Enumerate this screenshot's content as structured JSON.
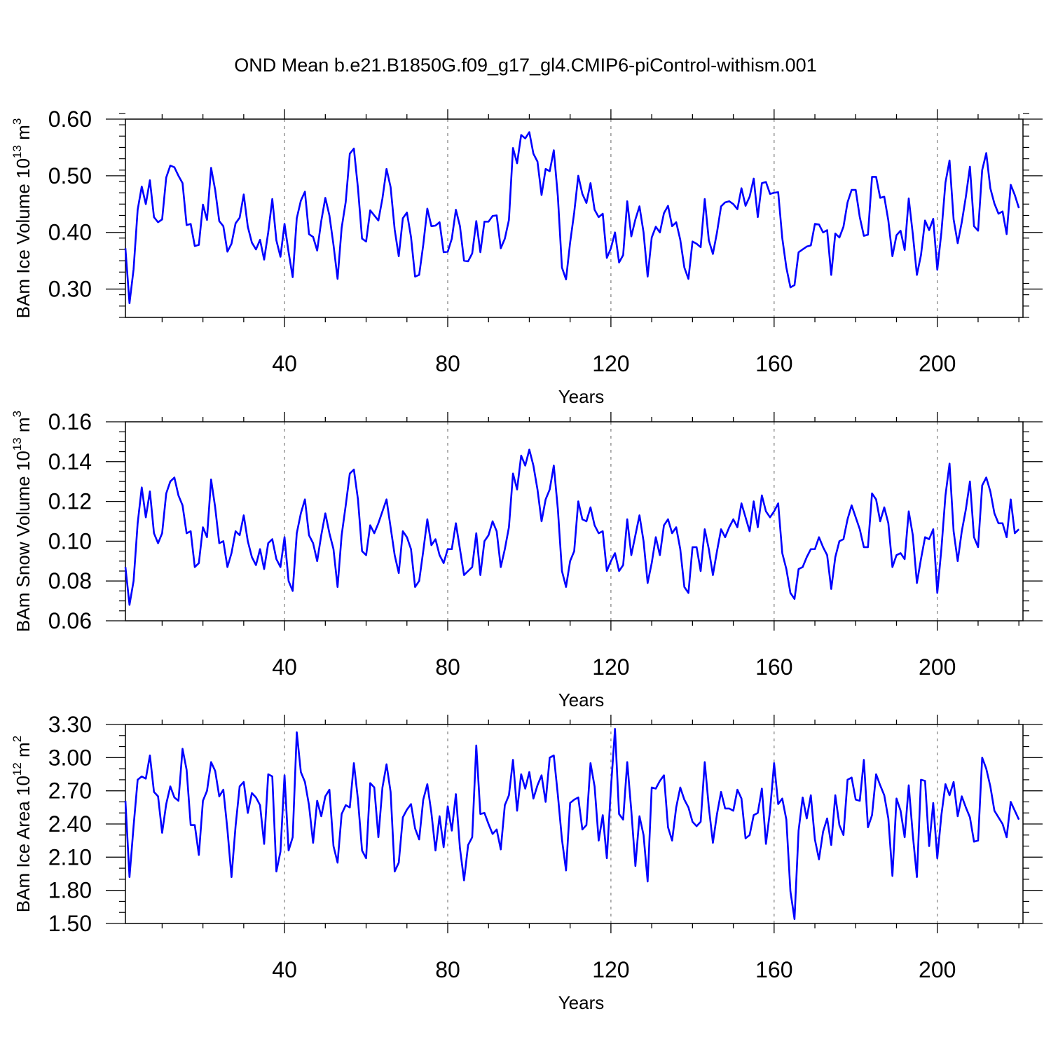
{
  "figure_title": "OND Mean b.e21.B1850G.f09_g17_gl4.CMIP6-piControl-withism.001",
  "chart_data": [
    {
      "type": "line",
      "title": "",
      "xlabel": "Years",
      "ylabel": "BAm Ice Volume 10",
      "ylabel_exp": "13",
      "ylabel_unit": " m",
      "ylabel_unit_exp": "3",
      "xlim": [
        1,
        221
      ],
      "ylim": [
        0.25,
        0.6
      ],
      "xticks": [
        40,
        80,
        120,
        160,
        200
      ],
      "xtick_labels": [
        "40",
        "80",
        "120",
        "160",
        "200"
      ],
      "yticks": [
        0.3,
        0.4,
        0.5,
        0.6
      ],
      "ytick_labels": [
        "0.30",
        "0.40",
        "0.50",
        "0.60"
      ],
      "yminor_step": 0.02,
      "line_color": "#0000ff",
      "series": [
        {
          "name": "BAm Ice Volume",
          "x_start": 1,
          "values": [
            0.372,
            0.275,
            0.335,
            0.44,
            0.481,
            0.45,
            0.492,
            0.427,
            0.418,
            0.423,
            0.497,
            0.518,
            0.515,
            0.5,
            0.487,
            0.413,
            0.415,
            0.376,
            0.378,
            0.449,
            0.422,
            0.514,
            0.475,
            0.42,
            0.411,
            0.366,
            0.38,
            0.416,
            0.426,
            0.467,
            0.41,
            0.382,
            0.37,
            0.387,
            0.352,
            0.4,
            0.459,
            0.386,
            0.357,
            0.415,
            0.365,
            0.321,
            0.425,
            0.456,
            0.472,
            0.397,
            0.392,
            0.368,
            0.42,
            0.461,
            0.43,
            0.378,
            0.318,
            0.408,
            0.454,
            0.539,
            0.548,
            0.478,
            0.389,
            0.384,
            0.439,
            0.43,
            0.421,
            0.46,
            0.512,
            0.48,
            0.405,
            0.358,
            0.425,
            0.435,
            0.392,
            0.322,
            0.325,
            0.378,
            0.442,
            0.411,
            0.412,
            0.418,
            0.365,
            0.366,
            0.389,
            0.44,
            0.411,
            0.35,
            0.349,
            0.363,
            0.42,
            0.365,
            0.419,
            0.419,
            0.429,
            0.43,
            0.372,
            0.389,
            0.422,
            0.549,
            0.522,
            0.572,
            0.566,
            0.577,
            0.539,
            0.525,
            0.466,
            0.512,
            0.508,
            0.545,
            0.463,
            0.338,
            0.317,
            0.382,
            0.435,
            0.5,
            0.468,
            0.452,
            0.487,
            0.44,
            0.427,
            0.433,
            0.355,
            0.372,
            0.4,
            0.347,
            0.36,
            0.455,
            0.393,
            0.423,
            0.446,
            0.4,
            0.322,
            0.391,
            0.41,
            0.4,
            0.434,
            0.447,
            0.411,
            0.418,
            0.387,
            0.338,
            0.318,
            0.384,
            0.38,
            0.374,
            0.459,
            0.386,
            0.362,
            0.4,
            0.446,
            0.453,
            0.455,
            0.45,
            0.441,
            0.478,
            0.447,
            0.463,
            0.495,
            0.427,
            0.487,
            0.489,
            0.468,
            0.47,
            0.471,
            0.39,
            0.338,
            0.303,
            0.307,
            0.365,
            0.37,
            0.375,
            0.377,
            0.415,
            0.414,
            0.4,
            0.404,
            0.325,
            0.398,
            0.391,
            0.41,
            0.453,
            0.475,
            0.475,
            0.427,
            0.394,
            0.396,
            0.498,
            0.498,
            0.461,
            0.463,
            0.421,
            0.358,
            0.395,
            0.403,
            0.369,
            0.46,
            0.397,
            0.325,
            0.36,
            0.421,
            0.404,
            0.424,
            0.334,
            0.4,
            0.488,
            0.527,
            0.423,
            0.381,
            0.418,
            0.463,
            0.516,
            0.411,
            0.403,
            0.51,
            0.54,
            0.478,
            0.451,
            0.433,
            0.437,
            0.397,
            0.484,
            0.466,
            0.443
          ]
        }
      ]
    },
    {
      "type": "line",
      "title": "",
      "xlabel": "Years",
      "ylabel": "BAm Snow Volume 10",
      "ylabel_exp": "13",
      "ylabel_unit": " m",
      "ylabel_unit_exp": "3",
      "xlim": [
        1,
        221
      ],
      "ylim": [
        0.06,
        0.16
      ],
      "xticks": [
        40,
        80,
        120,
        160,
        200
      ],
      "xtick_labels": [
        "40",
        "80",
        "120",
        "160",
        "200"
      ],
      "yticks": [
        0.06,
        0.08,
        0.1,
        0.12,
        0.14,
        0.16
      ],
      "ytick_labels": [
        "0.06",
        "0.08",
        "0.10",
        "0.12",
        "0.14",
        "0.16"
      ],
      "yminor_step": 0.005,
      "line_color": "#0000ff",
      "series": [
        {
          "name": "BAm Snow Volume",
          "x_start": 1,
          "values": [
            0.087,
            0.068,
            0.08,
            0.109,
            0.127,
            0.112,
            0.125,
            0.104,
            0.099,
            0.104,
            0.124,
            0.13,
            0.132,
            0.123,
            0.118,
            0.104,
            0.105,
            0.087,
            0.089,
            0.107,
            0.102,
            0.131,
            0.117,
            0.099,
            0.1,
            0.087,
            0.094,
            0.105,
            0.103,
            0.113,
            0.1,
            0.092,
            0.088,
            0.096,
            0.086,
            0.099,
            0.101,
            0.091,
            0.087,
            0.102,
            0.08,
            0.075,
            0.104,
            0.114,
            0.121,
            0.103,
            0.099,
            0.09,
            0.103,
            0.114,
            0.104,
            0.096,
            0.077,
            0.103,
            0.118,
            0.134,
            0.136,
            0.121,
            0.095,
            0.093,
            0.108,
            0.104,
            0.109,
            0.115,
            0.121,
            0.107,
            0.093,
            0.084,
            0.105,
            0.102,
            0.096,
            0.077,
            0.08,
            0.095,
            0.111,
            0.098,
            0.101,
            0.093,
            0.089,
            0.096,
            0.096,
            0.109,
            0.096,
            0.083,
            0.085,
            0.087,
            0.104,
            0.083,
            0.1,
            0.103,
            0.11,
            0.105,
            0.087,
            0.096,
            0.107,
            0.134,
            0.126,
            0.143,
            0.138,
            0.146,
            0.138,
            0.126,
            0.11,
            0.121,
            0.126,
            0.138,
            0.116,
            0.085,
            0.077,
            0.09,
            0.095,
            0.12,
            0.111,
            0.11,
            0.117,
            0.108,
            0.104,
            0.105,
            0.085,
            0.09,
            0.094,
            0.085,
            0.088,
            0.111,
            0.093,
            0.103,
            0.113,
            0.1,
            0.079,
            0.089,
            0.102,
            0.093,
            0.108,
            0.111,
            0.104,
            0.107,
            0.096,
            0.077,
            0.074,
            0.097,
            0.097,
            0.085,
            0.106,
            0.096,
            0.083,
            0.095,
            0.106,
            0.102,
            0.107,
            0.111,
            0.107,
            0.119,
            0.112,
            0.105,
            0.12,
            0.107,
            0.123,
            0.115,
            0.112,
            0.115,
            0.119,
            0.094,
            0.086,
            0.074,
            0.071,
            0.086,
            0.087,
            0.092,
            0.096,
            0.096,
            0.102,
            0.097,
            0.093,
            0.076,
            0.092,
            0.1,
            0.101,
            0.111,
            0.118,
            0.112,
            0.106,
            0.097,
            0.097,
            0.124,
            0.121,
            0.11,
            0.117,
            0.109,
            0.087,
            0.093,
            0.094,
            0.091,
            0.115,
            0.103,
            0.079,
            0.091,
            0.102,
            0.101,
            0.106,
            0.074,
            0.096,
            0.123,
            0.139,
            0.105,
            0.09,
            0.105,
            0.116,
            0.13,
            0.102,
            0.097,
            0.128,
            0.132,
            0.125,
            0.114,
            0.109,
            0.109,
            0.102,
            0.121,
            0.104,
            0.106
          ]
        }
      ]
    },
    {
      "type": "line",
      "title": "",
      "xlabel": "Years",
      "ylabel": "BAm Ice Area 10",
      "ylabel_exp": "12",
      "ylabel_unit": " m",
      "ylabel_unit_exp": "2",
      "xlim": [
        1,
        221
      ],
      "ylim": [
        1.5,
        3.3
      ],
      "xticks": [
        40,
        80,
        120,
        160,
        200
      ],
      "xtick_labels": [
        "40",
        "80",
        "120",
        "160",
        "200"
      ],
      "yticks": [
        1.5,
        1.8,
        2.1,
        2.4,
        2.7,
        3.0,
        3.3
      ],
      "ytick_labels": [
        "1.50",
        "1.80",
        "2.10",
        "2.40",
        "2.70",
        "3.00",
        "3.30"
      ],
      "yminor_step": 0.1,
      "line_color": "#0000ff",
      "series": [
        {
          "name": "BAm Ice Area",
          "x_start": 1,
          "values": [
            2.61,
            1.92,
            2.38,
            2.8,
            2.83,
            2.81,
            3.02,
            2.69,
            2.65,
            2.32,
            2.58,
            2.74,
            2.64,
            2.61,
            3.08,
            2.89,
            2.39,
            2.39,
            2.12,
            2.61,
            2.7,
            2.96,
            2.88,
            2.65,
            2.71,
            2.35,
            1.92,
            2.38,
            2.74,
            2.78,
            2.5,
            2.68,
            2.64,
            2.57,
            2.22,
            2.85,
            2.83,
            1.97,
            2.15,
            2.84,
            2.16,
            2.28,
            3.23,
            2.87,
            2.78,
            2.57,
            2.23,
            2.61,
            2.47,
            2.65,
            2.71,
            2.2,
            2.05,
            2.49,
            2.57,
            2.55,
            2.95,
            2.62,
            2.16,
            2.09,
            2.77,
            2.73,
            2.28,
            2.73,
            2.94,
            2.69,
            1.97,
            2.05,
            2.46,
            2.53,
            2.58,
            2.36,
            2.26,
            2.62,
            2.76,
            2.5,
            2.16,
            2.47,
            2.19,
            2.56,
            2.34,
            2.67,
            2.18,
            1.89,
            2.21,
            2.28,
            3.11,
            2.49,
            2.5,
            2.4,
            2.31,
            2.35,
            2.17,
            2.57,
            2.66,
            2.98,
            2.52,
            2.85,
            2.72,
            2.87,
            2.63,
            2.75,
            2.84,
            2.6,
            3.0,
            3.02,
            2.66,
            2.26,
            1.98,
            2.59,
            2.62,
            2.64,
            2.35,
            2.39,
            2.95,
            2.74,
            2.25,
            2.48,
            2.09,
            2.72,
            3.26,
            2.49,
            2.44,
            2.96,
            2.52,
            2.02,
            2.47,
            2.3,
            1.88,
            2.73,
            2.72,
            2.79,
            2.84,
            2.37,
            2.25,
            2.55,
            2.73,
            2.62,
            2.55,
            2.42,
            2.38,
            2.42,
            2.96,
            2.55,
            2.23,
            2.49,
            2.69,
            2.54,
            2.54,
            2.52,
            2.71,
            2.63,
            2.27,
            2.3,
            2.48,
            2.5,
            2.72,
            2.22,
            2.52,
            2.95,
            2.58,
            2.63,
            2.44,
            1.79,
            1.54,
            2.34,
            2.64,
            2.45,
            2.66,
            2.26,
            2.08,
            2.33,
            2.45,
            2.21,
            2.66,
            2.39,
            2.3,
            2.8,
            2.82,
            2.62,
            2.61,
            2.98,
            2.37,
            2.48,
            2.85,
            2.75,
            2.66,
            2.45,
            1.93,
            2.63,
            2.52,
            2.28,
            2.75,
            2.3,
            1.92,
            2.8,
            2.79,
            2.2,
            2.59,
            2.09,
            2.48,
            2.76,
            2.66,
            2.78,
            2.47,
            2.65,
            2.55,
            2.46,
            2.24,
            2.25,
            3.0,
            2.9,
            2.74,
            2.52,
            2.46,
            2.4,
            2.28,
            2.6,
            2.52,
            2.44
          ]
        }
      ]
    }
  ]
}
